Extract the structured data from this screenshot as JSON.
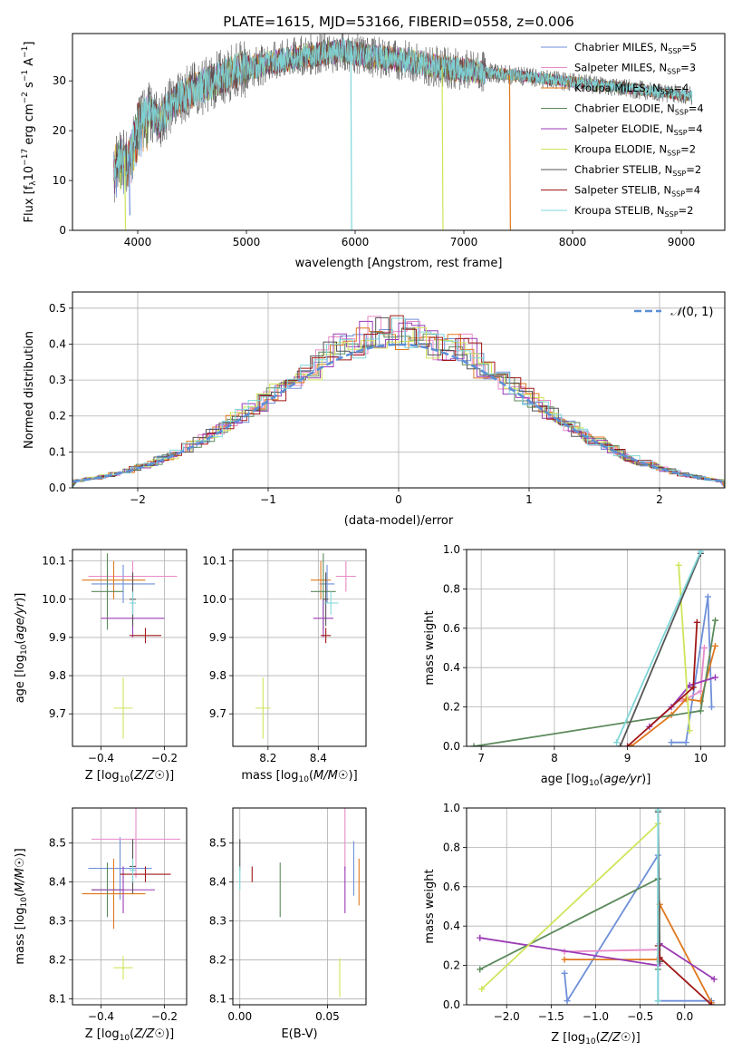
{
  "figure_title": "PLATE=1615, MJD=53166, FIBERID=0558, z=0.006",
  "series_styles": [
    {
      "label_main": "Chabrier MILES, N",
      "label_sub": "SSP",
      "label_tail": "=5",
      "color": "#6e8fd8"
    },
    {
      "label_main": "Salpeter MILES, N",
      "label_sub": "SSP",
      "label_tail": "=3",
      "color": "#e88ac8"
    },
    {
      "label_main": "Kroupa MILES, N",
      "label_sub": "SSP",
      "label_tail": "=4",
      "color": "#e0781e"
    },
    {
      "label_main": "Chabrier ELODIE, N",
      "label_sub": "SSP",
      "label_tail": "=4",
      "color": "#5c8a5c"
    },
    {
      "label_main": "Salpeter ELODIE, N",
      "label_sub": "SSP",
      "label_tail": "=4",
      "color": "#9b3bb5"
    },
    {
      "label_main": "Kroupa ELODIE, N",
      "label_sub": "SSP",
      "label_tail": "=2",
      "color": "#cfe55a"
    },
    {
      "label_main": "Chabrier STELIB, N",
      "label_sub": "SSP",
      "label_tail": "=2",
      "color": "#555555"
    },
    {
      "label_main": "Salpeter STELIB, N",
      "label_sub": "SSP",
      "label_tail": "=4",
      "color": "#a01818"
    },
    {
      "label_main": "Kroupa STELIB, N",
      "label_sub": "SSP",
      "label_tail": "=2",
      "color": "#7fd6d8"
    }
  ],
  "chart_data": [
    {
      "id": "spectrum",
      "type": "line",
      "xlabel": "wavelength [Angstrom, rest frame]",
      "ylabel_main": "Flux [f",
      "ylabel_tail": "10^-17 erg cm^-2 s^-1 A^-1]",
      "xlim": [
        3400,
        9400
      ],
      "ylim": [
        0,
        39.5
      ],
      "xticks": [
        4000,
        5000,
        6000,
        7000,
        8000,
        9000
      ],
      "yticks": [
        0,
        10,
        20,
        30
      ],
      "continuum": {
        "x": [
          3780,
          3850,
          3900,
          3950,
          4000,
          4100,
          4200,
          4300,
          4400,
          4500,
          4700,
          4900,
          5100,
          5300,
          5500,
          5700,
          5900,
          6100,
          6300,
          6500,
          6700,
          6900,
          7100,
          7300,
          7500,
          7700,
          7900,
          8100,
          8300,
          8500,
          8700,
          8900,
          9100
        ],
        "y": [
          13,
          16,
          14,
          17,
          22,
          24,
          22,
          25,
          27,
          28,
          30,
          32,
          33,
          34,
          35,
          35.5,
          36,
          35,
          34.5,
          34,
          33,
          32.5,
          32,
          31.5,
          31,
          30.5,
          30,
          29.5,
          29,
          28.5,
          28,
          27.5,
          27
        ]
      },
      "dropouts": [
        {
          "series": 0,
          "x": 3920,
          "y": 3
        },
        {
          "series": 5,
          "x": 3880,
          "y": 0
        },
        {
          "series": 8,
          "x": 5960,
          "y": 0
        },
        {
          "series": 5,
          "x": 6800,
          "y": 0
        },
        {
          "series": 2,
          "x": 7420,
          "y": 0
        }
      ]
    },
    {
      "id": "residuals",
      "type": "histogram",
      "xlabel": "(data-model)/error",
      "ylabel": "Normed distribution",
      "xlim": [
        -2.5,
        2.5
      ],
      "ylim": [
        0,
        0.545
      ],
      "xticks": [
        -2,
        -1,
        0,
        1,
        2
      ],
      "yticks": [
        0,
        0.1,
        0.2,
        0.3,
        0.4,
        0.5
      ],
      "bin_width": 0.1,
      "legend_label": "(0, 1)",
      "reference_color": "#5b8fd6"
    },
    {
      "id": "age_vs_z",
      "type": "errorbar",
      "xlabel": "Z [log10(Z/Z☉)]",
      "ylabel": "age  [log10(age/yr)]",
      "xlim": [
        -0.49,
        -0.13
      ],
      "ylim": [
        9.615,
        10.13
      ],
      "xticks": [
        -0.4,
        -0.2
      ],
      "xtick_labels": [
        "−0.4",
        "−0.2"
      ],
      "yticks": [
        9.7,
        9.8,
        9.9,
        10.0,
        10.1
      ],
      "points": [
        {
          "series": 0,
          "x": -0.33,
          "xe": 0.1,
          "y": 10.04,
          "ye": 0.05
        },
        {
          "series": 1,
          "x": -0.3,
          "xe": 0.14,
          "y": 10.06,
          "ye": 0.04
        },
        {
          "series": 2,
          "x": -0.36,
          "xe": 0.1,
          "y": 10.05,
          "ye": 0.05
        },
        {
          "series": 3,
          "x": -0.38,
          "xe": 0.05,
          "y": 10.02,
          "ye": 0.1
        },
        {
          "series": 4,
          "x": -0.3,
          "xe": 0.1,
          "y": 9.95,
          "ye": 0.05
        },
        {
          "series": 5,
          "x": -0.33,
          "xe": 0.03,
          "y": 9.715,
          "ye": 0.08
        },
        {
          "series": 6,
          "x": -0.3,
          "xe": 0.01,
          "y": 10.0,
          "ye": 0.07
        },
        {
          "series": 7,
          "x": -0.26,
          "xe": 0.05,
          "y": 9.905,
          "ye": 0.02
        },
        {
          "series": 8,
          "x": -0.3,
          "xe": 0.01,
          "y": 9.99,
          "ye": 0.03
        }
      ]
    },
    {
      "id": "age_vs_mass",
      "type": "errorbar",
      "xlabel": "mass [log10(M/M☉)]",
      "ylabel": "",
      "xlim": [
        8.06,
        8.59
      ],
      "ylim": [
        9.615,
        10.13
      ],
      "xticks": [
        8.2,
        8.4
      ],
      "xtick_labels": [
        "8.2",
        "8.4"
      ],
      "yticks": [
        9.7,
        9.8,
        9.9,
        10.0,
        10.1
      ],
      "points": [
        {
          "series": 0,
          "x": 8.435,
          "xe": 0.03,
          "y": 10.04,
          "ye": 0.05
        },
        {
          "series": 1,
          "x": 8.51,
          "xe": 0.04,
          "y": 10.06,
          "ye": 0.04
        },
        {
          "series": 2,
          "x": 8.41,
          "xe": 0.04,
          "y": 10.05,
          "ye": 0.05
        },
        {
          "series": 3,
          "x": 8.42,
          "xe": 0.05,
          "y": 10.02,
          "ye": 0.1
        },
        {
          "series": 4,
          "x": 8.42,
          "xe": 0.04,
          "y": 9.95,
          "ye": 0.05
        },
        {
          "series": 5,
          "x": 8.18,
          "xe": 0.03,
          "y": 9.715,
          "ye": 0.08
        },
        {
          "series": 6,
          "x": 8.43,
          "xe": 0.01,
          "y": 10.0,
          "ye": 0.07
        },
        {
          "series": 7,
          "x": 8.43,
          "xe": 0.02,
          "y": 9.905,
          "ye": 0.02
        },
        {
          "series": 8,
          "x": 8.45,
          "xe": 0.03,
          "y": 9.99,
          "ye": 0.03
        }
      ]
    },
    {
      "id": "weight_vs_age",
      "type": "line",
      "xlabel": "age  [log10(age/yr)]",
      "ylabel": "mass weight",
      "xlim": [
        6.8,
        10.33
      ],
      "ylim": [
        0,
        1.0
      ],
      "xticks": [
        7,
        8,
        9,
        10
      ],
      "xtick_labels": [
        "7",
        "8",
        "9",
        "10"
      ],
      "yticks": [
        0,
        0.2,
        0.4,
        0.6,
        0.8,
        1.0
      ],
      "ytick_labels": [
        "0.0",
        "0.2",
        "0.4",
        "0.6",
        "0.8",
        "1.0"
      ],
      "series": [
        {
          "series": 0,
          "x": [
            9.6,
            9.8,
            10.1,
            10.15
          ],
          "y": [
            0.02,
            0.02,
            0.76,
            0.2
          ]
        },
        {
          "series": 1,
          "x": [
            9.75,
            10.0,
            10.05
          ],
          "y": [
            0.23,
            0.28,
            0.5
          ]
        },
        {
          "series": 2,
          "x": [
            9.05,
            9.6,
            9.8,
            10.0,
            10.2
          ],
          "y": [
            0.0,
            0.16,
            0.24,
            0.23,
            0.51
          ]
        },
        {
          "series": 3,
          "x": [
            6.9,
            10.0,
            10.2
          ],
          "y": [
            0.0,
            0.18,
            0.64
          ]
        },
        {
          "series": 4,
          "x": [
            9.3,
            9.6,
            9.85,
            10.2
          ],
          "y": [
            0.1,
            0.2,
            0.31,
            0.35
          ]
        },
        {
          "series": 5,
          "x": [
            9.7,
            9.85
          ],
          "y": [
            0.92,
            0.08
          ]
        },
        {
          "series": 6,
          "x": [
            8.9,
            10.0
          ],
          "y": [
            0.0,
            0.98
          ]
        },
        {
          "series": 7,
          "x": [
            9.0,
            9.9,
            9.95
          ],
          "y": [
            0.0,
            0.3,
            0.63
          ]
        },
        {
          "series": 8,
          "x": [
            8.85,
            10.0
          ],
          "y": [
            0.02,
            0.99
          ]
        }
      ]
    },
    {
      "id": "mass_vs_z",
      "type": "errorbar",
      "xlabel": "Z [log10(Z/Z☉)]",
      "ylabel": "mass [log10(M/M☉)]",
      "xlim": [
        -0.49,
        -0.13
      ],
      "ylim": [
        8.085,
        8.59
      ],
      "xticks": [
        -0.4,
        -0.2
      ],
      "xtick_labels": [
        "−0.4",
        "−0.2"
      ],
      "yticks": [
        8.1,
        8.2,
        8.3,
        8.4,
        8.5
      ],
      "points": [
        {
          "series": 0,
          "x": -0.34,
          "xe": 0.1,
          "y": 8.435,
          "ye": 0.08
        },
        {
          "series": 1,
          "x": -0.29,
          "xe": 0.14,
          "y": 8.51,
          "ye": 0.1
        },
        {
          "series": 2,
          "x": -0.36,
          "xe": 0.1,
          "y": 8.37,
          "ye": 0.09
        },
        {
          "series": 3,
          "x": -0.38,
          "xe": 0.05,
          "y": 8.38,
          "ye": 0.07
        },
        {
          "series": 4,
          "x": -0.33,
          "xe": 0.1,
          "y": 8.38,
          "ye": 0.06
        },
        {
          "series": 5,
          "x": -0.33,
          "xe": 0.03,
          "y": 8.18,
          "ye": 0.03
        },
        {
          "series": 6,
          "x": -0.3,
          "xe": 0.01,
          "y": 8.44,
          "ye": 0.07
        },
        {
          "series": 7,
          "x": -0.26,
          "xe": 0.08,
          "y": 8.42,
          "ye": 0.02
        },
        {
          "series": 8,
          "x": -0.3,
          "xe": 0.01,
          "y": 8.43,
          "ye": 0.03
        }
      ]
    },
    {
      "id": "mass_vs_ebv",
      "type": "errorbar",
      "xlabel": "E(B-V)",
      "ylabel": "",
      "xlim": [
        -0.004,
        0.072
      ],
      "ylim": [
        8.085,
        8.59
      ],
      "xticks": [
        0.0,
        0.05
      ],
      "xtick_labels": [
        "0.00",
        "0.05"
      ],
      "yticks": [
        8.1,
        8.2,
        8.3,
        8.4,
        8.5
      ],
      "points": [
        {
          "series": 0,
          "x": 0.065,
          "xe": 0.0,
          "y": 8.435,
          "ye": 0.07
        },
        {
          "series": 1,
          "x": 0.06,
          "xe": 0.0,
          "y": 8.51,
          "ye": 0.08
        },
        {
          "series": 2,
          "x": 0.068,
          "xe": 0.0,
          "y": 8.4,
          "ye": 0.06
        },
        {
          "series": 3,
          "x": 0.023,
          "xe": 0.0,
          "y": 8.38,
          "ye": 0.07
        },
        {
          "series": 4,
          "x": 0.06,
          "xe": 0.0,
          "y": 8.38,
          "ye": 0.06
        },
        {
          "series": 5,
          "x": 0.057,
          "xe": 0.0,
          "y": 8.155,
          "ye": 0.05
        },
        {
          "series": 6,
          "x": 0.0,
          "xe": 0.0,
          "y": 8.47,
          "ye": 0.04
        },
        {
          "series": 7,
          "x": 0.007,
          "xe": 0.0,
          "y": 8.42,
          "ye": 0.02
        },
        {
          "series": 8,
          "x": 0.0,
          "xe": 0.0,
          "y": 8.41,
          "ye": 0.03
        }
      ]
    },
    {
      "id": "weight_vs_z",
      "type": "line",
      "xlabel": "Z [log10(Z/Z☉)]",
      "ylabel": "mass weight",
      "xlim": [
        -2.45,
        0.45
      ],
      "ylim": [
        0,
        1.0
      ],
      "xticks": [
        -2.0,
        -1.5,
        -1.0,
        -0.5,
        0.0
      ],
      "xtick_labels": [
        "−2.0",
        "−1.5",
        "−1.0",
        "−0.5",
        "0.0"
      ],
      "yticks": [
        0,
        0.2,
        0.4,
        0.6,
        0.8,
        1.0
      ],
      "ytick_labels": [
        "0.0",
        "0.2",
        "0.4",
        "0.6",
        "0.8",
        "1.0"
      ],
      "series": [
        {
          "series": 0,
          "x": [
            -1.35,
            -1.32,
            -0.3,
            -0.3,
            0.3
          ],
          "y": [
            0.16,
            0.02,
            0.76,
            0.02,
            0.02
          ]
        },
        {
          "series": 1,
          "x": [
            -1.35,
            -0.3,
            -0.28
          ],
          "y": [
            0.27,
            0.28,
            0.21
          ]
        },
        {
          "series": 2,
          "x": [
            -1.35,
            -0.3,
            -0.28,
            0.3
          ],
          "y": [
            0.23,
            0.23,
            0.51,
            0.01
          ]
        },
        {
          "series": 3,
          "x": [
            -2.3,
            -0.3,
            -0.3
          ],
          "y": [
            0.18,
            0.64,
            0.18
          ]
        },
        {
          "series": 4,
          "x": [
            -2.3,
            -0.3,
            -0.28,
            0.33
          ],
          "y": [
            0.34,
            0.2,
            0.31,
            0.13
          ]
        },
        {
          "series": 5,
          "x": [
            -2.28,
            -0.3
          ],
          "y": [
            0.08,
            0.92
          ]
        },
        {
          "series": 6,
          "x": [
            -0.3,
            -0.28
          ],
          "y": [
            0.98,
            0.22
          ]
        },
        {
          "series": 7,
          "x": [
            -0.3,
            -0.28,
            0.3
          ],
          "y": [
            0.3,
            0.24,
            0.0
          ]
        },
        {
          "series": 8,
          "x": [
            -0.3,
            -0.3
          ],
          "y": [
            0.99,
            0.02
          ]
        }
      ]
    }
  ]
}
